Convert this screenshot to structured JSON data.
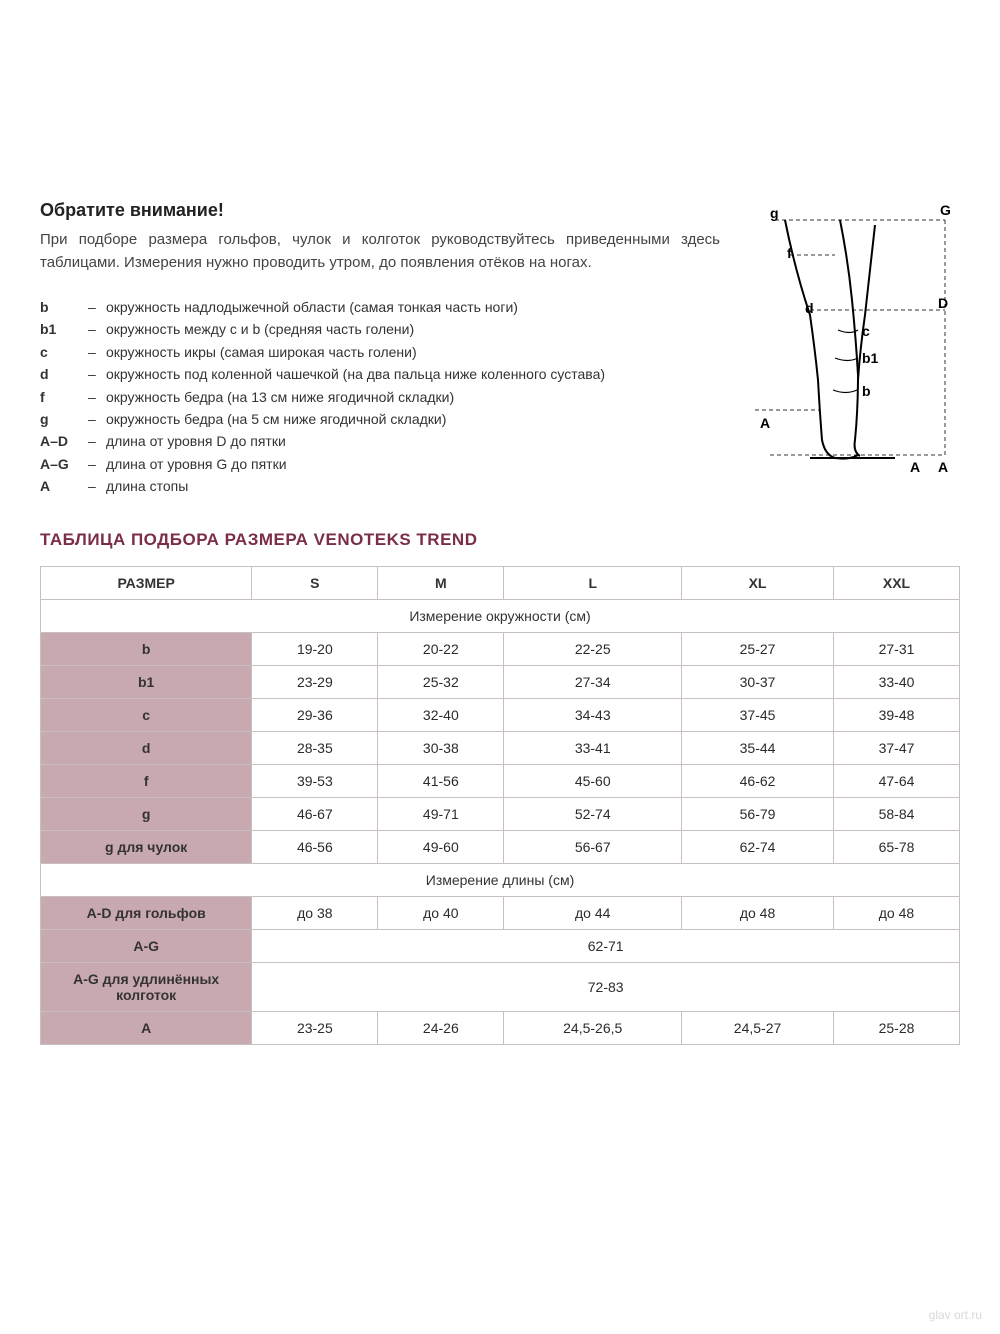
{
  "colors": {
    "accent_dark": "#7a2e4a",
    "row_label_bg": "#c9a9b0",
    "border": "#c8bfc3",
    "text": "#2b2b2b"
  },
  "heading": "Обратите внимание!",
  "intro": "При подборе размера гольфов, чулок и колготок руководствуйтесь приведенными здесь таблицами. Измерения нужно проводить утром, до появления отёков на ногах.",
  "definitions": [
    {
      "key": "b",
      "text": "окружность надлодыжечной области (самая тонкая часть ноги)"
    },
    {
      "key": "b1",
      "text": "окружность между c и b (средняя часть голени)"
    },
    {
      "key": "c",
      "text": "окружность икры (самая широкая часть голени)"
    },
    {
      "key": "d",
      "text": "окружность под коленной чашечкой (на два пальца ниже коленного сустава)"
    },
    {
      "key": "f",
      "text": "окружность бедра (на 13 см ниже ягодичной складки)"
    },
    {
      "key": "g",
      "text": "окружность бедра (на 5 см ниже ягодичной складки)"
    },
    {
      "key": "A–D",
      "text": "длина от уровня D до пятки"
    },
    {
      "key": "A–G",
      "text": "длина от уровня G до пятки"
    },
    {
      "key": "A",
      "text": "длина стопы"
    }
  ],
  "diagram_labels": [
    "g",
    "G",
    "f",
    "d",
    "D",
    "c",
    "b1",
    "b",
    "A",
    "A",
    "A"
  ],
  "table_title": "ТАБЛИЦА ПОДБОРА РАЗМЕРА VENOTEKS TREND",
  "table": {
    "columns": [
      "РАЗМЕР",
      "S",
      "M",
      "L",
      "XL",
      "XXL"
    ],
    "section1_label": "Измерение окружности (см)",
    "section1_rows": [
      {
        "label": "b",
        "values": [
          "19-20",
          "20-22",
          "22-25",
          "25-27",
          "27-31"
        ]
      },
      {
        "label": "b1",
        "values": [
          "23-29",
          "25-32",
          "27-34",
          "30-37",
          "33-40"
        ]
      },
      {
        "label": "c",
        "values": [
          "29-36",
          "32-40",
          "34-43",
          "37-45",
          "39-48"
        ]
      },
      {
        "label": "d",
        "values": [
          "28-35",
          "30-38",
          "33-41",
          "35-44",
          "37-47"
        ]
      },
      {
        "label": "f",
        "values": [
          "39-53",
          "41-56",
          "45-60",
          "46-62",
          "47-64"
        ]
      },
      {
        "label": "g",
        "values": [
          "46-67",
          "49-71",
          "52-74",
          "56-79",
          "58-84"
        ]
      },
      {
        "label": "g для чулок",
        "values": [
          "46-56",
          "49-60",
          "56-67",
          "62-74",
          "65-78"
        ]
      }
    ],
    "section2_label": "Измерение длины (см)",
    "section2_rows": [
      {
        "label": "A-D для гольфов",
        "values": [
          "до 38",
          "до 40",
          "до 44",
          "до 48",
          "до 48"
        ]
      },
      {
        "label": "A-G",
        "span": true,
        "span_value": "62-71"
      },
      {
        "label": "A-G для удлинённых колготок",
        "span": true,
        "span_value": "72-83"
      },
      {
        "label": "A",
        "values": [
          "23-25",
          "24-26",
          "24,5-26,5",
          "24,5-27",
          "25-28"
        ]
      }
    ]
  },
  "watermark": "glav ort.ru"
}
